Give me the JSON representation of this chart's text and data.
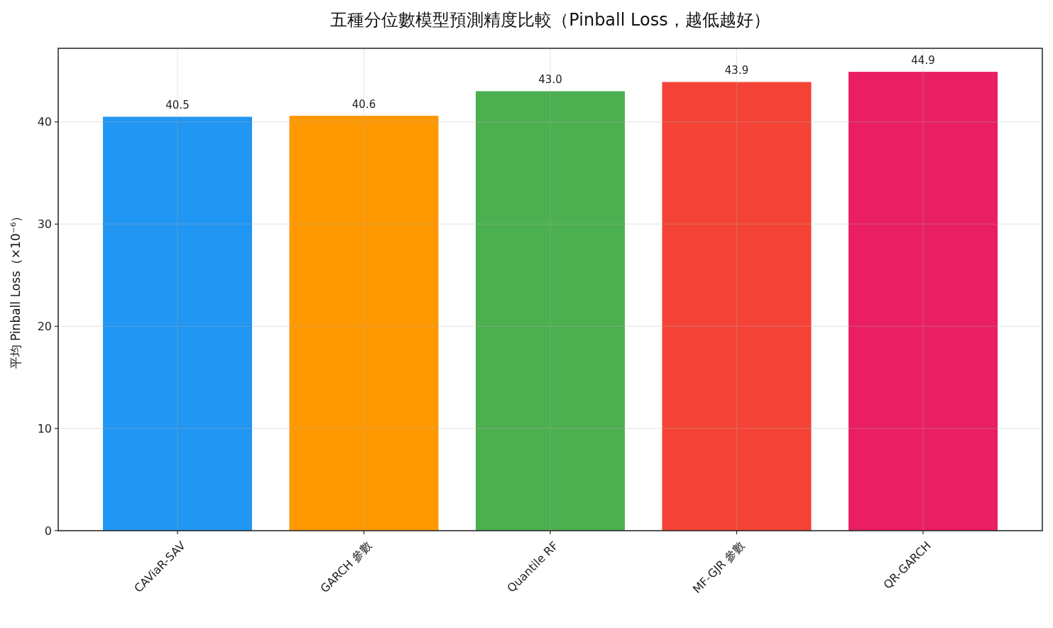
{
  "chart_data": {
    "type": "bar",
    "title": "五種分位數模型預測精度比較（Pinball Loss，越低越好）",
    "ylabel": "平均 Pinball Loss（×10⁻⁶）",
    "categories": [
      "CAViaR-SAV",
      "GARCH 參數",
      "Quantile RF",
      "MF-GJR 參數",
      "QR-GARCH"
    ],
    "values": [
      40.5,
      40.6,
      43.0,
      43.9,
      44.9
    ],
    "value_labels": [
      "40.5",
      "40.6",
      "43.0",
      "43.9",
      "44.9"
    ],
    "colors": [
      "#2196f3",
      "#ff9800",
      "#4caf50",
      "#f44336",
      "#e91e63"
    ],
    "ylim": [
      0,
      47.2
    ],
    "yticks": [
      0,
      10,
      20,
      30,
      40
    ],
    "grid": true
  }
}
